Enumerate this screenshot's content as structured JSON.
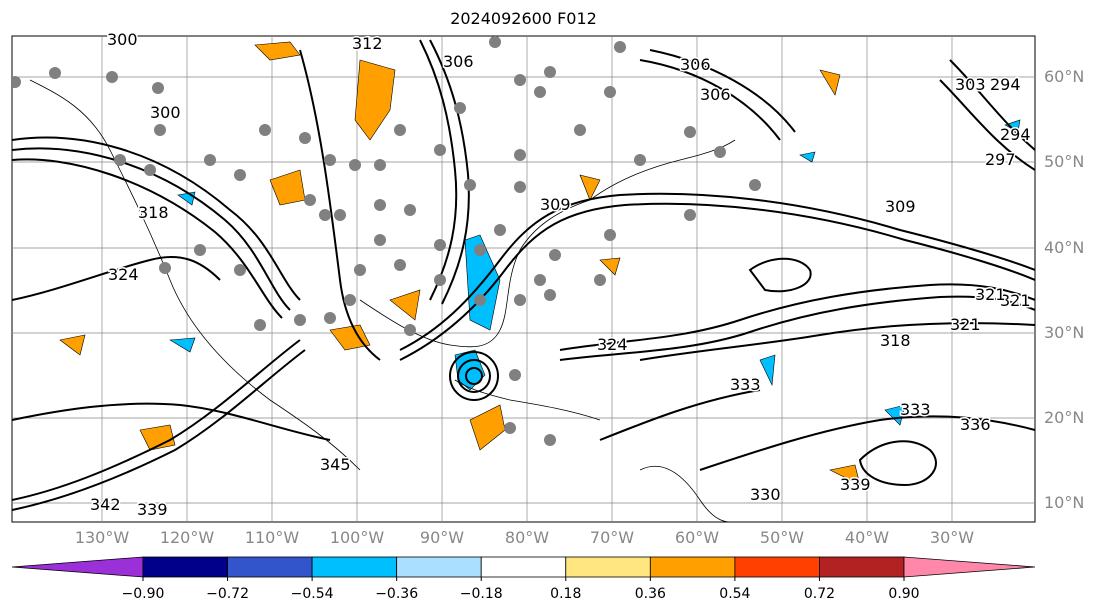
{
  "title": "2024092600 F012",
  "lon_labels": [
    "130°W",
    "120°W",
    "110°W",
    "100°W",
    "90°W",
    "80°W",
    "70°W",
    "60°W",
    "50°W",
    "40°W",
    "30°W"
  ],
  "lat_labels": [
    "60°N",
    "50°N",
    "40°N",
    "30°N",
    "20°N",
    "10°N"
  ],
  "colorbar": {
    "ticks": [
      "−0.90",
      "−0.72",
      "−0.54",
      "−0.36",
      "−0.18",
      "0.18",
      "0.36",
      "0.54",
      "0.72",
      "0.90"
    ],
    "colors": [
      "#9b30d9",
      "#00008b",
      "#3355cc",
      "#00bfff",
      "#aadfff",
      "#ffffff",
      "#ffe680",
      "#ffa000",
      "#ff4000",
      "#b22222",
      "#ff88aa"
    ]
  },
  "contour_labels": [
    "300",
    "300",
    "312",
    "306",
    "306",
    "306",
    "303",
    "294",
    "297",
    "294",
    "309",
    "309",
    "318",
    "321",
    "324",
    "321",
    "318",
    "321",
    "324",
    "333",
    "339",
    "342",
    "339",
    "336",
    "333",
    "345",
    "330"
  ],
  "colors": {
    "contour": "#000000",
    "gridline": "#888888",
    "positive_fill": "#ffa000",
    "negative_fill": "#00bfff",
    "station_dot": "#808080"
  }
}
